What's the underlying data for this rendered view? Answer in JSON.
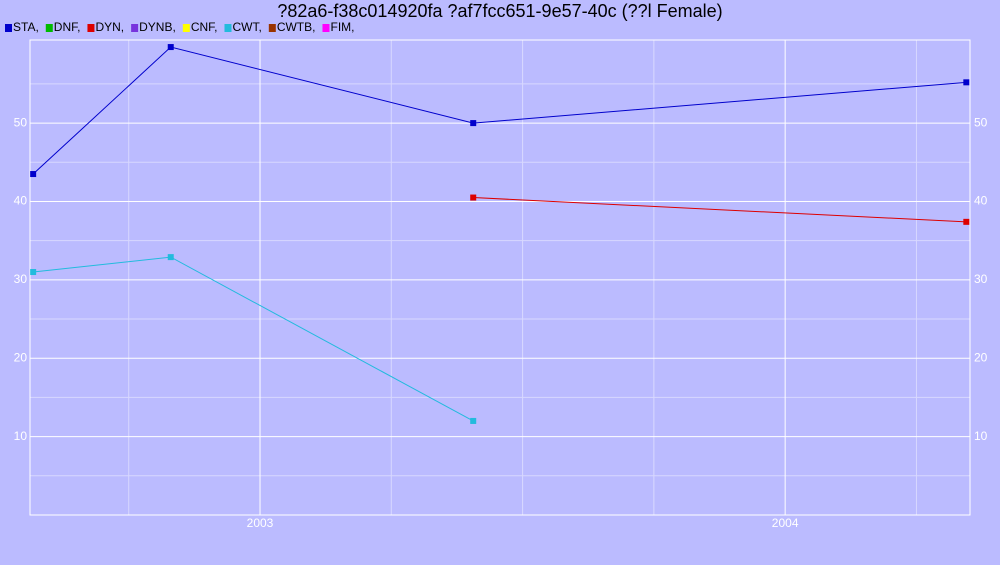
{
  "chart_data": {
    "type": "line",
    "title": "?82a6-f38c014920fa ?af7fcc651-9e57-40c (??l Female)",
    "x": [
      2002.568,
      2002.83,
      2003.406,
      2004.345
    ],
    "series": [
      {
        "name": "STA,",
        "color": "#0000cc",
        "values": [
          43.5,
          59.7,
          50.0,
          55.2
        ]
      },
      {
        "name": "DNF,",
        "color": "#00bb00",
        "values": [
          null,
          null,
          null,
          null
        ]
      },
      {
        "name": "DYN,",
        "color": "#dd0000",
        "values": [
          null,
          null,
          40.5,
          37.4
        ]
      },
      {
        "name": "DYNB,",
        "color": "#7733dd",
        "values": [
          null,
          null,
          null,
          null
        ]
      },
      {
        "name": "CNF,",
        "color": "#ffff00",
        "values": [
          null,
          null,
          null,
          null
        ]
      },
      {
        "name": "CWT,",
        "color": "#22bbdd",
        "values": [
          31.0,
          32.9,
          12.0,
          null
        ]
      },
      {
        "name": "CWTB,",
        "color": "#993300",
        "values": [
          null,
          null,
          null,
          null
        ]
      },
      {
        "name": "FIM,",
        "color": "#ff00ff",
        "values": [
          null,
          null,
          null,
          null
        ]
      }
    ],
    "xlim": [
      2002.562,
      2004.352
    ],
    "xticks": [
      2003,
      2004
    ],
    "x_minor_ticks": [
      2002.75,
      2003.25,
      2003.5,
      2003.75,
      2004.25
    ],
    "ylim": [
      0,
      60.6
    ],
    "yticks": [
      10,
      20,
      30,
      40,
      50
    ],
    "y_minor_ticks": [
      5,
      15,
      25,
      35,
      45,
      55
    ],
    "grid": true,
    "legend": "top-left"
  }
}
